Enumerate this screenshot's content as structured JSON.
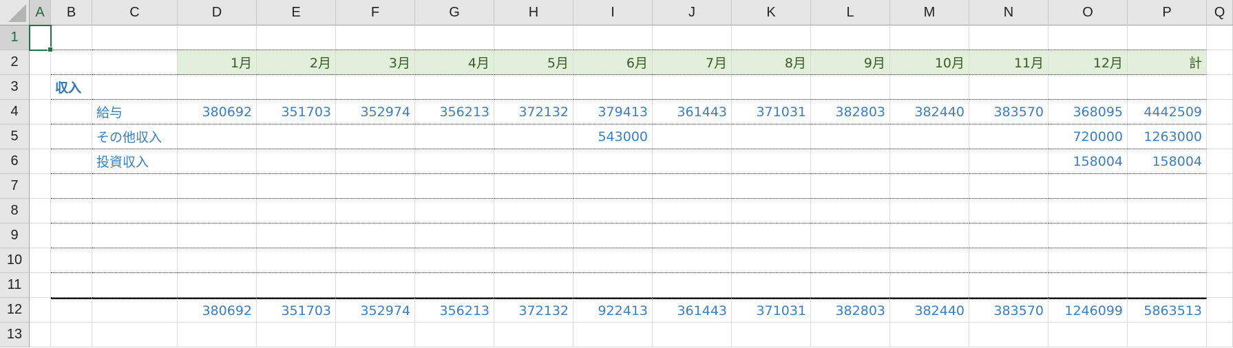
{
  "columns": [
    "A",
    "B",
    "C",
    "D",
    "E",
    "F",
    "G",
    "H",
    "I",
    "J",
    "K",
    "L",
    "M",
    "N",
    "O",
    "P",
    "Q"
  ],
  "rows": [
    "1",
    "2",
    "3",
    "4",
    "5",
    "6",
    "7",
    "8",
    "9",
    "10",
    "11",
    "12",
    "13"
  ],
  "selected_cell": "A1",
  "header_row": [
    "1月",
    "2月",
    "3月",
    "4月",
    "5月",
    "6月",
    "7月",
    "8月",
    "9月",
    "10月",
    "11月",
    "12月",
    "計"
  ],
  "section_label": "収入",
  "items": [
    {
      "label": "給与",
      "values": [
        "380692",
        "351703",
        "352974",
        "356213",
        "372132",
        "379413",
        "361443",
        "371031",
        "382803",
        "382440",
        "383570",
        "368095",
        "4442509"
      ]
    },
    {
      "label": "その他収入",
      "values": [
        "",
        "",
        "",
        "",
        "",
        "543000",
        "",
        "",
        "",
        "",
        "",
        "720000",
        "1263000"
      ]
    },
    {
      "label": "投資収入",
      "values": [
        "",
        "",
        "",
        "",
        "",
        "",
        "",
        "",
        "",
        "",
        "",
        "158004",
        "158004"
      ]
    }
  ],
  "totals": [
    "380692",
    "351703",
    "352974",
    "356213",
    "372132",
    "922413",
    "361443",
    "371031",
    "382803",
    "382440",
    "383570",
    "1246099",
    "5863513"
  ],
  "colors": {
    "header_bg": "#e2efda",
    "value_text": "#3a7fc4",
    "selection": "#217346"
  }
}
